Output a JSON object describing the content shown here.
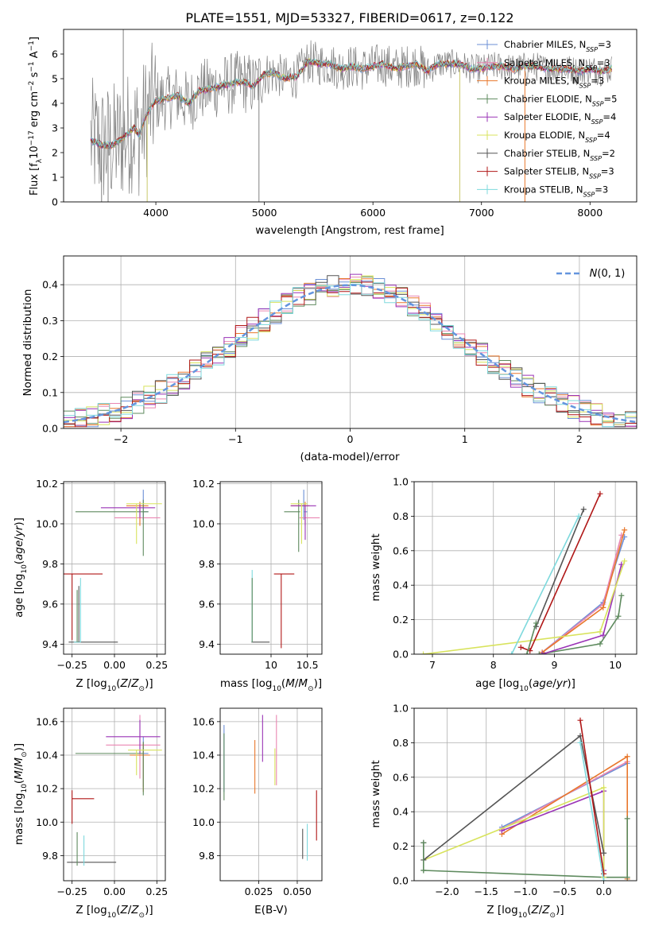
{
  "figure_title": "PLATE=1551, MJD=53327, FIBERID=0617, z=0.122",
  "colors": {
    "Chabrier MILES": "#6b8fd6",
    "Salpeter MILES": "#e986b2",
    "Kroupa MILES": "#e8772c",
    "Chabrier ELODIE": "#5e8a5e",
    "Salpeter ELODIE": "#9a33b6",
    "Kroupa ELODIE": "#d8e35c",
    "Chabrier STELIB": "#555555",
    "Salpeter STELIB": "#b01717",
    "Kroupa STELIB": "#7ed9dd",
    "data": "#808080",
    "normal": "#6495de"
  },
  "chart_data": [
    {
      "type": "line",
      "panel": "spectrum",
      "xlabel": "wavelength [Angstrom, rest frame]",
      "ylabel": "Flux [f_λ 10^-17 erg cm^-2 s^-1 A^-1]",
      "xlim": [
        3150,
        8430
      ],
      "ylim": [
        0,
        7
      ],
      "xticks": [
        4000,
        5000,
        6000,
        7000,
        8000
      ],
      "yticks": [
        0,
        1,
        2,
        3,
        4,
        5,
        6
      ],
      "grid": false,
      "legend_position": "right",
      "series": [
        {
          "name": "Chabrier MILES, N_SSP=3",
          "label": "Chabrier MILES, N",
          "sub": "SSP",
          "suffix": "=3"
        },
        {
          "name": "Salpeter MILES, N_SSP=3",
          "label": "Salpeter MILES, N",
          "sub": "SSP",
          "suffix": "=3"
        },
        {
          "name": "Kroupa MILES, N_SSP=3",
          "label": "Kroupa MILES, N",
          "sub": "SSP",
          "suffix": "=3"
        },
        {
          "name": "Chabrier ELODIE, N_SSP=5",
          "label": "Chabrier ELODIE, N",
          "sub": "SSP",
          "suffix": "=5"
        },
        {
          "name": "Salpeter ELODIE, N_SSP=4",
          "label": "Salpeter ELODIE, N",
          "sub": "SSP",
          "suffix": "=4"
        },
        {
          "name": "Kroupa ELODIE, N_SSP=4",
          "label": "Kroupa ELODIE, N",
          "sub": "SSP",
          "suffix": "=4"
        },
        {
          "name": "Chabrier STELIB, N_SSP=2",
          "label": "Chabrier STELIB, N",
          "sub": "SSP",
          "suffix": "=2"
        },
        {
          "name": "Salpeter STELIB, N_SSP=3",
          "label": "Salpeter STELIB, N",
          "sub": "SSP",
          "suffix": "=3"
        },
        {
          "name": "Kroupa STELIB, N_SSP=3",
          "label": "Kroupa STELIB, N",
          "sub": "SSP",
          "suffix": "=3"
        }
      ],
      "model_curve": {
        "x": [
          3400,
          3500,
          3600,
          3700,
          3800,
          3850,
          3900,
          3950,
          4000,
          4100,
          4200,
          4300,
          4400,
          4500,
          4600,
          4700,
          4800,
          4900,
          5000,
          5100,
          5200,
          5300,
          5400,
          5500,
          5600,
          5700,
          5800,
          5900,
          6000,
          6100,
          6200,
          6300,
          6400,
          6500,
          6600,
          6700,
          6800,
          6900,
          7000,
          7100,
          7200,
          7300,
          7400,
          7500,
          7600,
          7700,
          7800,
          7900,
          8000,
          8100,
          8200
        ],
        "y": [
          2.5,
          2.3,
          2.3,
          2.6,
          3.0,
          2.7,
          3.4,
          3.8,
          4.1,
          4.2,
          4.3,
          4.0,
          4.5,
          4.6,
          4.7,
          4.8,
          4.9,
          4.7,
          5.2,
          5.2,
          5.0,
          5.1,
          5.7,
          5.6,
          5.6,
          5.4,
          5.5,
          5.4,
          5.5,
          5.6,
          5.4,
          5.5,
          5.6,
          5.3,
          5.6,
          5.6,
          5.6,
          5.4,
          5.4,
          5.5,
          5.5,
          5.4,
          5.5,
          5.5,
          5.4,
          5.4,
          5.4,
          5.3,
          5.4,
          5.3,
          5.4
        ]
      }
    },
    {
      "type": "line",
      "panel": "residual-histogram",
      "xlabel": "(data-model)/error",
      "ylabel": "Normed distribution",
      "xlim": [
        -2.5,
        2.5
      ],
      "ylim": [
        0,
        0.48
      ],
      "xticks": [
        -2,
        -1,
        0,
        1,
        2
      ],
      "yticks": [
        0.0,
        0.1,
        0.2,
        0.3,
        0.4
      ],
      "grid": true,
      "legend_position": "top-right",
      "reference_label": "N(0,1)",
      "bin_width": 0.1
    },
    {
      "type": "scatter",
      "panel": "age-vs-metallicity",
      "xlabel": "Z [log10(Z/Z⊙)]",
      "ylabel": "age [log10(age/yr)]",
      "xlim": [
        -0.3,
        0.3
      ],
      "ylim": [
        9.35,
        10.21
      ],
      "xticks": [
        -0.25,
        0.0,
        0.25
      ],
      "yticks": [
        9.4,
        9.6,
        9.8,
        10.0,
        10.2
      ],
      "grid": true
    },
    {
      "type": "scatter",
      "panel": "age-vs-mass",
      "xlabel": "mass [log10(M/M⊙)]",
      "ylabel": "",
      "xlim": [
        9.3,
        10.7
      ],
      "ylim": [
        9.35,
        10.21
      ],
      "xticks": [
        10.0,
        10.5
      ],
      "yticks": [
        9.4,
        9.6,
        9.8,
        10.0,
        10.2
      ],
      "grid": true
    },
    {
      "type": "line",
      "panel": "mass-weight-vs-age",
      "xlabel": "age [log10(age/yr)]",
      "ylabel": "mass weight",
      "xlim": [
        6.7,
        10.35
      ],
      "ylim": [
        0,
        1
      ],
      "xticks": [
        7,
        8,
        9,
        10
      ],
      "yticks": [
        0.0,
        0.2,
        0.4,
        0.6,
        0.8,
        1.0
      ],
      "grid": true
    },
    {
      "type": "scatter",
      "panel": "mass-vs-metallicity",
      "xlabel": "Z [log10(Z/Z⊙)]",
      "ylabel": "mass [log10(M/M⊙)]",
      "xlim": [
        -0.3,
        0.3
      ],
      "ylim": [
        9.65,
        10.68
      ],
      "xticks": [
        -0.25,
        0.0,
        0.25
      ],
      "yticks": [
        9.8,
        10.0,
        10.2,
        10.4,
        10.6
      ],
      "grid": true
    },
    {
      "type": "scatter",
      "panel": "mass-vs-extinction",
      "xlabel": "E(B-V)",
      "ylabel": "",
      "xlim": [
        0.0,
        0.066
      ],
      "ylim": [
        9.65,
        10.68
      ],
      "xticks": [
        0.025,
        0.05
      ],
      "yticks": [
        9.8,
        10.0,
        10.2,
        10.4,
        10.6
      ],
      "grid": true
    },
    {
      "type": "line",
      "panel": "mass-weight-vs-metallicity",
      "xlabel": "Z [log10(Z/Z⊙)]",
      "ylabel": "mass weight",
      "xlim": [
        -2.42,
        0.42
      ],
      "ylim": [
        0,
        1
      ],
      "xticks": [
        -2.0,
        -1.5,
        -1.0,
        -0.5,
        0.0
      ],
      "yticks": [
        0.0,
        0.2,
        0.4,
        0.6,
        0.8,
        1.0
      ],
      "grid": true
    }
  ]
}
